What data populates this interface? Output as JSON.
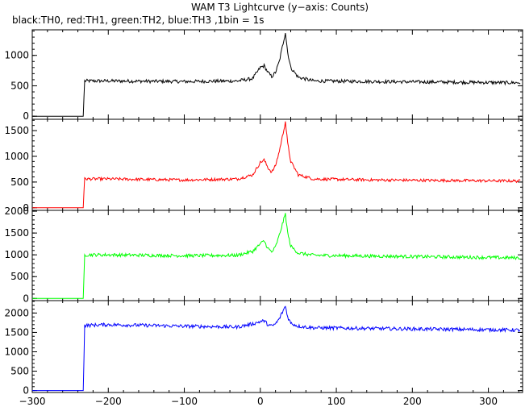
{
  "title": "WAM T3 Lightcurve (y−axis: Counts)",
  "subtitle": "black:TH0, red:TH1, green:TH2, blue:TH3 ,1bin = 1s",
  "chart_data": {
    "type": "line",
    "xlim": [
      -300,
      345
    ],
    "x_ticks": [
      -300,
      -200,
      -100,
      0,
      100,
      200,
      300
    ],
    "x_tick_labels": [
      "−300",
      "−200",
      "−100",
      "0",
      "100",
      "200",
      "300"
    ],
    "panels": [
      {
        "name": "TH0",
        "color": "#000000",
        "ylim": [
          -50,
          1420
        ],
        "y_ticks": [
          0,
          500,
          1000
        ],
        "y_tick_labels": [
          "0",
          "500",
          "1000"
        ],
        "points": [
          [
            -300,
            0
          ],
          [
            -233,
            0
          ],
          [
            -232,
            310
          ],
          [
            -231,
            580
          ],
          [
            -200,
            580
          ],
          [
            -100,
            570
          ],
          [
            -30,
            580
          ],
          [
            -10,
            620
          ],
          [
            0,
            800
          ],
          [
            5,
            830
          ],
          [
            10,
            720
          ],
          [
            15,
            650
          ],
          [
            20,
            720
          ],
          [
            25,
            900
          ],
          [
            30,
            1200
          ],
          [
            33,
            1380
          ],
          [
            36,
            1050
          ],
          [
            40,
            800
          ],
          [
            50,
            640
          ],
          [
            70,
            580
          ],
          [
            150,
            570
          ],
          [
            250,
            560
          ],
          [
            342,
            550
          ]
        ],
        "noise": 28
      },
      {
        "name": "TH1",
        "color": "#ff0000",
        "ylim": [
          -50,
          1720
        ],
        "y_ticks": [
          0,
          500,
          1000,
          1500
        ],
        "y_tick_labels": [
          "0",
          "500",
          "1000",
          "1500"
        ],
        "points": [
          [
            -300,
            0
          ],
          [
            -233,
            0
          ],
          [
            -232,
            310
          ],
          [
            -231,
            560
          ],
          [
            -200,
            560
          ],
          [
            -100,
            540
          ],
          [
            -30,
            560
          ],
          [
            -10,
            640
          ],
          [
            0,
            880
          ],
          [
            5,
            930
          ],
          [
            10,
            780
          ],
          [
            15,
            690
          ],
          [
            20,
            820
          ],
          [
            25,
            1100
          ],
          [
            30,
            1450
          ],
          [
            33,
            1680
          ],
          [
            36,
            1250
          ],
          [
            40,
            900
          ],
          [
            50,
            640
          ],
          [
            70,
            560
          ],
          [
            150,
            540
          ],
          [
            250,
            530
          ],
          [
            342,
            520
          ]
        ],
        "noise": 28
      },
      {
        "name": "TH2",
        "color": "#00ff00",
        "ylim": [
          -50,
          2020
        ],
        "y_ticks": [
          0,
          500,
          1000,
          1500,
          2000
        ],
        "y_tick_labels": [
          "0",
          "500",
          "1000",
          "1500",
          "2000"
        ],
        "points": [
          [
            -300,
            0
          ],
          [
            -233,
            0
          ],
          [
            -232,
            500
          ],
          [
            -231,
            1000
          ],
          [
            -200,
            1000
          ],
          [
            -100,
            980
          ],
          [
            -30,
            990
          ],
          [
            -10,
            1080
          ],
          [
            0,
            1250
          ],
          [
            5,
            1320
          ],
          [
            10,
            1150
          ],
          [
            15,
            1060
          ],
          [
            20,
            1180
          ],
          [
            25,
            1450
          ],
          [
            30,
            1760
          ],
          [
            33,
            1940
          ],
          [
            36,
            1500
          ],
          [
            40,
            1200
          ],
          [
            50,
            1040
          ],
          [
            70,
            990
          ],
          [
            150,
            970
          ],
          [
            250,
            950
          ],
          [
            342,
            930
          ]
        ],
        "noise": 38
      },
      {
        "name": "TH3",
        "color": "#0000ff",
        "ylim": [
          -50,
          2320
        ],
        "y_ticks": [
          0,
          500,
          1000,
          1500,
          2000
        ],
        "y_tick_labels": [
          "0",
          "500",
          "1000",
          "1500",
          "2000"
        ],
        "points": [
          [
            -300,
            0
          ],
          [
            -233,
            0
          ],
          [
            -232,
            800
          ],
          [
            -231,
            1680
          ],
          [
            -200,
            1700
          ],
          [
            -100,
            1660
          ],
          [
            -30,
            1640
          ],
          [
            -10,
            1720
          ],
          [
            0,
            1780
          ],
          [
            5,
            1800
          ],
          [
            10,
            1700
          ],
          [
            15,
            1660
          ],
          [
            20,
            1720
          ],
          [
            25,
            1850
          ],
          [
            30,
            2060
          ],
          [
            33,
            2180
          ],
          [
            36,
            1900
          ],
          [
            40,
            1740
          ],
          [
            50,
            1660
          ],
          [
            70,
            1620
          ],
          [
            150,
            1600
          ],
          [
            250,
            1580
          ],
          [
            342,
            1560
          ]
        ],
        "noise": 45
      }
    ]
  }
}
